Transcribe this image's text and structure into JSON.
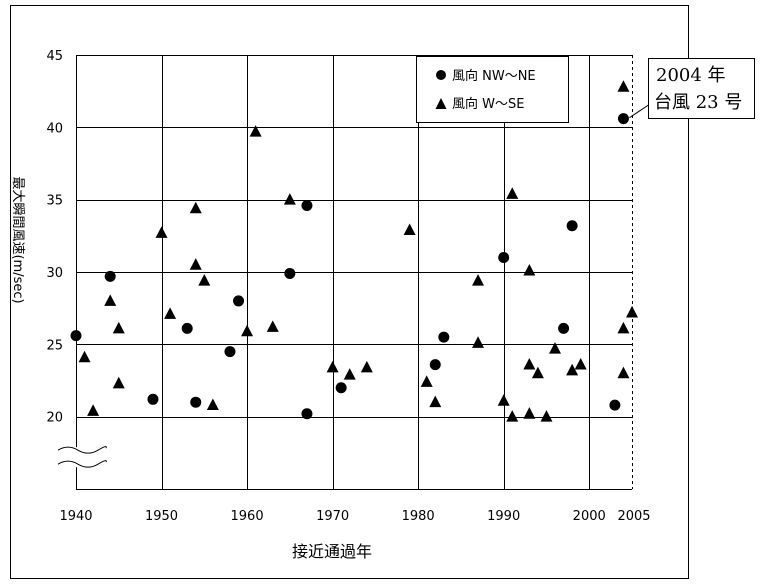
{
  "chart_data": {
    "type": "scatter",
    "xlabel": "接近通過年",
    "ylabel": "最大瞬間風速(m/sec)",
    "xlim": [
      1940,
      2005
    ],
    "ylim": [
      15,
      45
    ],
    "x_ticks": [
      1940,
      1950,
      1960,
      1970,
      1980,
      1990,
      2000,
      2005
    ],
    "y_ticks": [
      20,
      25,
      30,
      35,
      40,
      45
    ],
    "grid": true,
    "axis_break": "y-below-20",
    "legend_position": "top-right",
    "series": [
      {
        "name": "風向 NW〜NE",
        "marker": "circle",
        "points": [
          [
            1940,
            25.6
          ],
          [
            1944,
            29.7
          ],
          [
            1949,
            21.2
          ],
          [
            1953,
            26.1
          ],
          [
            1954,
            21.0
          ],
          [
            1958,
            24.5
          ],
          [
            1959,
            28.0
          ],
          [
            1965,
            29.9
          ],
          [
            1967,
            34.6
          ],
          [
            1967,
            20.2
          ],
          [
            1971,
            22.0
          ],
          [
            1982,
            23.6
          ],
          [
            1983,
            25.5
          ],
          [
            1990,
            31.0
          ],
          [
            1997,
            26.1
          ],
          [
            1998,
            33.2
          ],
          [
            2003,
            20.8
          ],
          [
            2004,
            40.6
          ]
        ]
      },
      {
        "name": "風向 W〜SE",
        "marker": "triangle",
        "points": [
          [
            1941,
            24.1
          ],
          [
            1942,
            20.4
          ],
          [
            1944,
            28.0
          ],
          [
            1945,
            26.1
          ],
          [
            1945,
            22.3
          ],
          [
            1950,
            32.7
          ],
          [
            1951,
            27.1
          ],
          [
            1954,
            34.4
          ],
          [
            1954,
            30.5
          ],
          [
            1955,
            29.4
          ],
          [
            1956,
            20.8
          ],
          [
            1960,
            25.9
          ],
          [
            1961,
            39.7
          ],
          [
            1963,
            26.2
          ],
          [
            1965,
            35.0
          ],
          [
            1970,
            23.4
          ],
          [
            1972,
            22.9
          ],
          [
            1974,
            23.4
          ],
          [
            1979,
            32.9
          ],
          [
            1981,
            22.4
          ],
          [
            1982,
            21.0
          ],
          [
            1987,
            29.4
          ],
          [
            1987,
            25.1
          ],
          [
            1990,
            21.1
          ],
          [
            1991,
            35.4
          ],
          [
            1991,
            20.0
          ],
          [
            1993,
            30.1
          ],
          [
            1993,
            23.6
          ],
          [
            1993,
            20.2
          ],
          [
            1994,
            23.0
          ],
          [
            1995,
            20.0
          ],
          [
            1996,
            24.7
          ],
          [
            1998,
            23.2
          ],
          [
            1999,
            23.6
          ],
          [
            2004,
            42.8
          ],
          [
            2004,
            26.1
          ],
          [
            2004,
            23.0
          ],
          [
            2005,
            27.2
          ]
        ]
      }
    ],
    "annotation": {
      "lines": [
        "2004 年",
        "台風 23 号"
      ],
      "target": [
        2004,
        40.6
      ]
    }
  }
}
